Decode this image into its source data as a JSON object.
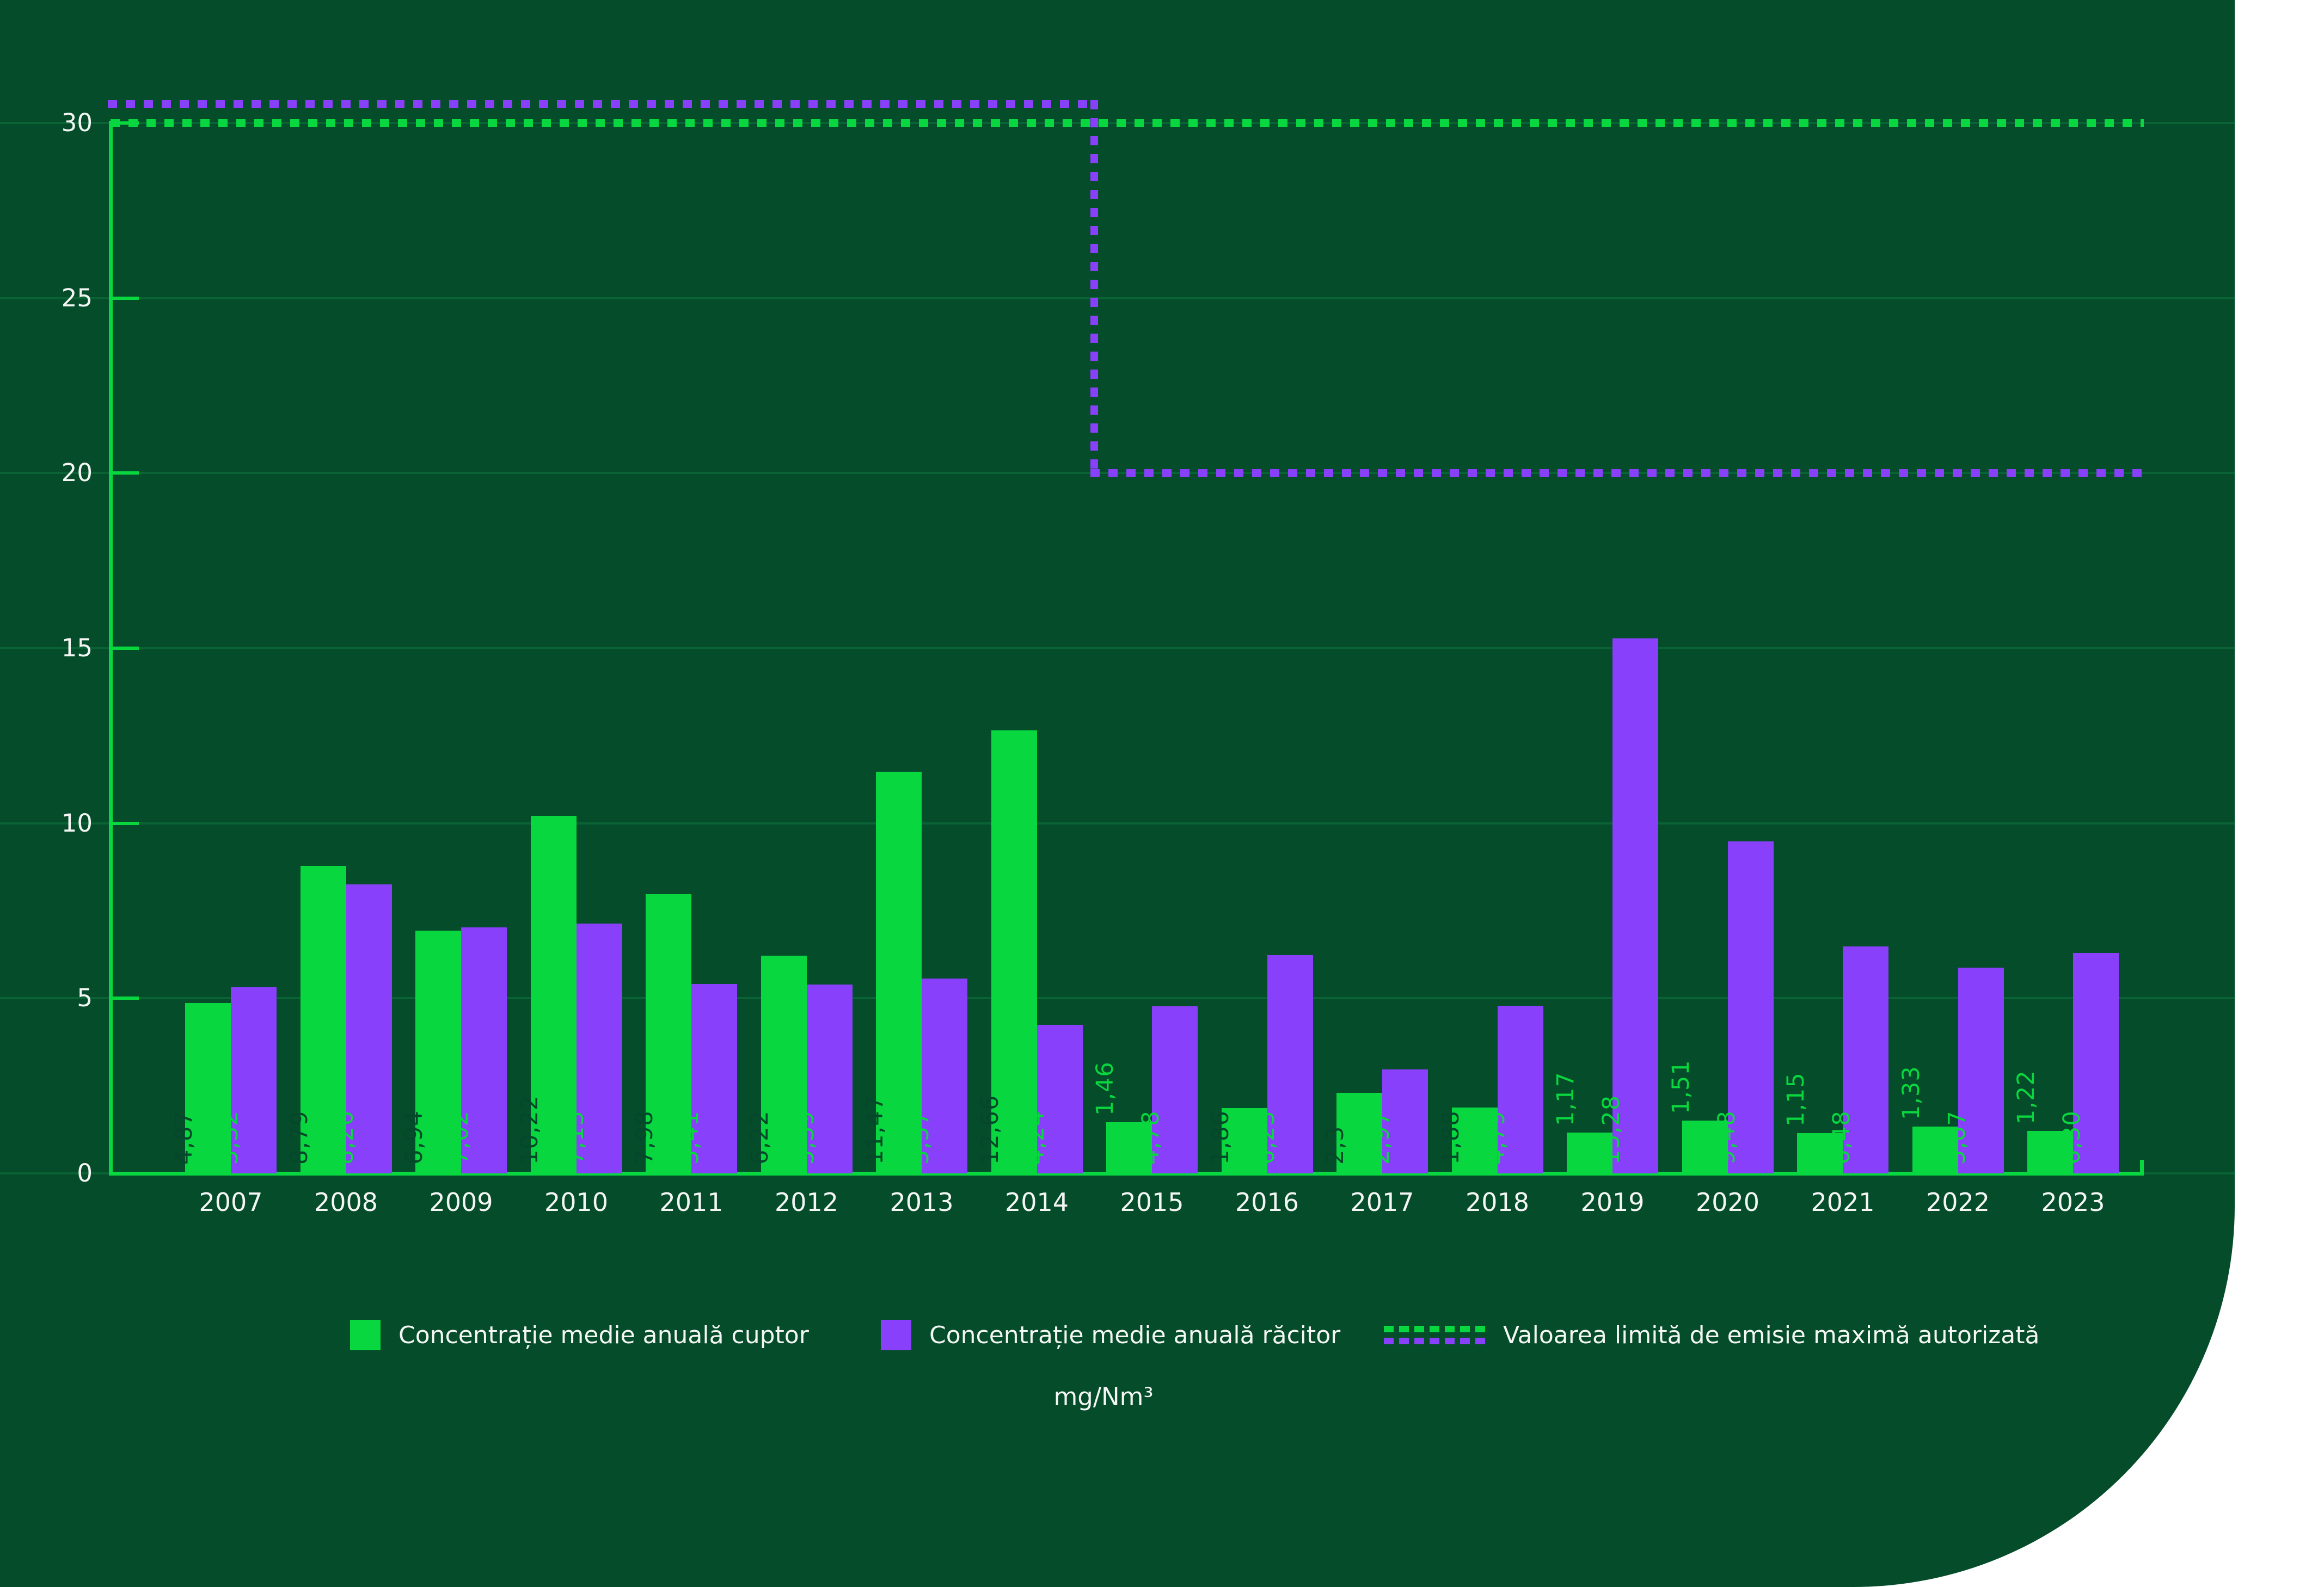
{
  "colors": {
    "background_panel": "#054C2A",
    "bar_green": "#09D73F",
    "bar_purple": "#8940FA",
    "gridline": "#0A6334",
    "text_light": "#F3F6F3",
    "label_dark_on_green": "#05472A"
  },
  "chart_data": {
    "type": "bar",
    "title": "",
    "xlabel": "",
    "ylabel": "mg/Nm³",
    "ylim": [
      0,
      30
    ],
    "yticks": [
      0,
      5,
      10,
      15,
      20,
      25,
      30
    ],
    "grid": "horizontal",
    "legend_position": "bottom",
    "categories": [
      "2007",
      "2008",
      "2009",
      "2010",
      "2011",
      "2012",
      "2013",
      "2014",
      "2015",
      "2016",
      "2017",
      "2018",
      "2019",
      "2020",
      "2021",
      "2022",
      "2023"
    ],
    "series": [
      {
        "name": "Concentrație medie anuală cuptor",
        "color_key": "bar_green",
        "values": [
          4.87,
          8.79,
          6.94,
          10.22,
          7.98,
          6.22,
          11.47,
          12.66,
          1.46,
          1.86,
          2.3,
          1.88,
          1.17,
          1.51,
          1.15,
          1.33,
          1.22
        ],
        "labels": [
          "4,87",
          "8,79",
          "6,94",
          "10,22",
          "7,98",
          "6,22",
          "11,47",
          "12,66",
          "1,46",
          "1,86",
          "2,3",
          "1,88",
          "1,17",
          "1,51",
          "1,15",
          "1,33",
          "1,22"
        ],
        "label_placement": [
          "in",
          "in",
          "in",
          "in",
          "in",
          "in",
          "in",
          "in",
          "above",
          "in",
          "in",
          "in",
          "above",
          "above",
          "above",
          "above",
          "above"
        ]
      },
      {
        "name": "Concentrație medie anuală răcitor",
        "color_key": "bar_purple",
        "values": [
          5.32,
          8.26,
          7.02,
          7.13,
          5.41,
          5.39,
          5.57,
          4.24,
          4.78,
          6.23,
          2.97,
          4.79,
          15.28,
          9.48,
          6.48,
          5.87,
          6.3
        ],
        "labels": [
          "5,32",
          "8,26",
          "7,02",
          "7,13",
          "5,41",
          "5,39",
          "5,57",
          "4,24",
          "4,78",
          "6,23",
          "2,97",
          "4,79",
          "15,28",
          "9,48",
          "6,48",
          "5,87",
          "6,30"
        ],
        "label_placement": [
          "in",
          "in",
          "in",
          "in",
          "in",
          "in",
          "in",
          "in",
          "in",
          "in",
          "in",
          "in",
          "in",
          "in",
          "in",
          "in",
          "in"
        ]
      }
    ],
    "limit_lines": {
      "name": "Valoarea limită de emisie maximă autorizată",
      "green": {
        "value": 30,
        "from_category": "2007",
        "to_category": "2023"
      },
      "purple": {
        "segments": [
          {
            "value": 30,
            "from_category": "2007",
            "to_category": "2014"
          },
          {
            "value": 20,
            "from_category": "2015",
            "to_category": "2023"
          }
        ]
      }
    }
  },
  "legend": {
    "items": [
      {
        "label": "Concentrație medie anuală cuptor",
        "swatch": "green-square"
      },
      {
        "label": "Concentrație medie anuală răcitor",
        "swatch": "purple-square"
      },
      {
        "label": "Valoarea limită de emisie maximă autorizată",
        "swatch": "dashed-green-purple-lines"
      }
    ]
  },
  "unit_label": "mg/Nm³"
}
